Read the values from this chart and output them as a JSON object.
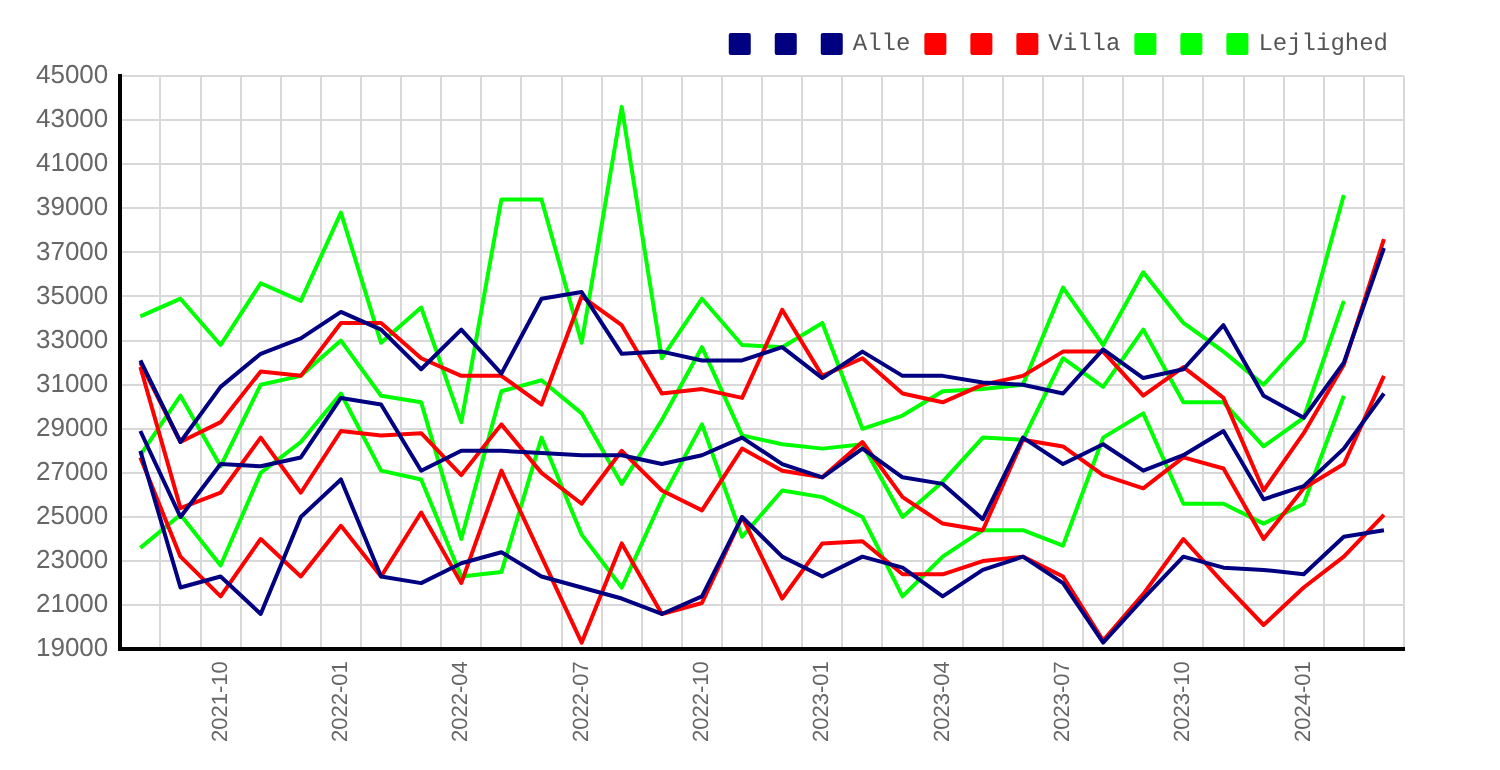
{
  "chart_data": {
    "type": "line",
    "categories": [
      null,
      null,
      "2021-10",
      null,
      null,
      "2022-01",
      null,
      null,
      "2022-04",
      null,
      null,
      "2022-07",
      null,
      null,
      "2022-10",
      null,
      null,
      "2023-01",
      null,
      null,
      "2023-04",
      null,
      null,
      "2023-07",
      null,
      null,
      "2023-10",
      null,
      null,
      "2024-01",
      null,
      null
    ],
    "series": [
      {
        "color": "#000080",
        "values": [
          32100,
          28400,
          30900,
          32400,
          33100,
          34300,
          33500,
          31700,
          33500,
          31500,
          34900,
          35200,
          32400,
          32500,
          32100,
          32100,
          32700,
          31300,
          32500,
          31400,
          31400,
          31100,
          31000,
          30600,
          32600,
          31300,
          31700,
          33700,
          30500,
          29500,
          32000,
          37200
        ]
      },
      {
        "color": "#000080",
        "values": [
          28900,
          25000,
          27400,
          27300,
          27700,
          30400,
          30100,
          27100,
          28000,
          28000,
          27900,
          27800,
          27800,
          27400,
          27800,
          28600,
          27400,
          26800,
          28100,
          26800,
          26500,
          24900,
          28600,
          27400,
          28300,
          27100,
          27800,
          28900,
          25800,
          26400,
          28100,
          30600
        ]
      },
      {
        "name": "Alle",
        "color": "#000080",
        "values": [
          28000,
          21800,
          22300,
          20600,
          25000,
          26700,
          22300,
          22000,
          22900,
          23400,
          22300,
          21800,
          21300,
          20600,
          21400,
          25000,
          23200,
          22300,
          23200,
          22700,
          21400,
          22600,
          23200,
          22000,
          19300,
          21300,
          23200,
          22700,
          22600,
          22400,
          24100,
          24400
        ]
      },
      {
        "color": "#ff0000",
        "values": [
          32000,
          28400,
          29300,
          31600,
          31400,
          33800,
          33800,
          32200,
          31400,
          31400,
          30100,
          35000,
          33700,
          30600,
          30800,
          30400,
          34400,
          31400,
          32200,
          30600,
          30200,
          31000,
          31400,
          32500,
          32500,
          30500,
          31800,
          30400,
          26200,
          28800,
          31900,
          37600
        ]
      },
      {
        "color": "#ff0000",
        "values": [
          31800,
          25400,
          26100,
          28600,
          26100,
          28900,
          28700,
          28800,
          26900,
          29200,
          27000,
          25600,
          28000,
          26200,
          25300,
          28100,
          27100,
          26800,
          28400,
          25900,
          24700,
          24400,
          28500,
          28200,
          26900,
          26300,
          27700,
          27200,
          24000,
          26300,
          27400,
          31400
        ]
      },
      {
        "name": "Villa",
        "color": "#ff0000",
        "values": [
          27700,
          23200,
          21400,
          24000,
          22300,
          24600,
          22300,
          25200,
          22000,
          27100,
          23200,
          19300,
          23800,
          20600,
          21100,
          25000,
          21300,
          23800,
          23900,
          22400,
          22400,
          23000,
          23200,
          22300,
          19400,
          21500,
          24000,
          22000,
          20100,
          21800,
          23200,
          25100
        ]
      },
      {
        "color": "#00ff00",
        "values": [
          34100,
          34900,
          32800,
          35600,
          34800,
          38800,
          32900,
          34500,
          29300,
          39400,
          39400,
          32900,
          43600,
          32200,
          34900,
          32800,
          32700,
          33800,
          29000,
          29600,
          30700,
          30800,
          31000,
          35400,
          32800,
          36100,
          33800,
          32500,
          31000,
          33000,
          39600,
          null
        ]
      },
      {
        "color": "#00ff00",
        "values": [
          27800,
          30500,
          27300,
          31000,
          31400,
          33000,
          30500,
          30200,
          24000,
          30700,
          31200,
          29700,
          26500,
          29400,
          32700,
          28700,
          28300,
          28100,
          28300,
          25000,
          26600,
          28600,
          28500,
          32200,
          30900,
          33500,
          30200,
          30200,
          28200,
          29500,
          34800,
          null
        ]
      },
      {
        "name": "Lejlighed",
        "color": "#00ff00",
        "values": [
          23600,
          25100,
          22800,
          27000,
          28400,
          30600,
          27100,
          26700,
          22300,
          22500,
          28600,
          24200,
          21800,
          25800,
          29200,
          24100,
          26200,
          25900,
          25000,
          21400,
          23200,
          24400,
          24400,
          23700,
          28600,
          29700,
          25600,
          25600,
          24700,
          25600,
          30500,
          null
        ]
      }
    ],
    "ylim": [
      19000,
      45000
    ],
    "yticks": [
      19000,
      21000,
      23000,
      25000,
      27000,
      29000,
      31000,
      33000,
      35000,
      37000,
      39000,
      41000,
      43000,
      45000
    ],
    "grid": true,
    "legend": "top right",
    "marker": "none",
    "line_style": "solid"
  }
}
